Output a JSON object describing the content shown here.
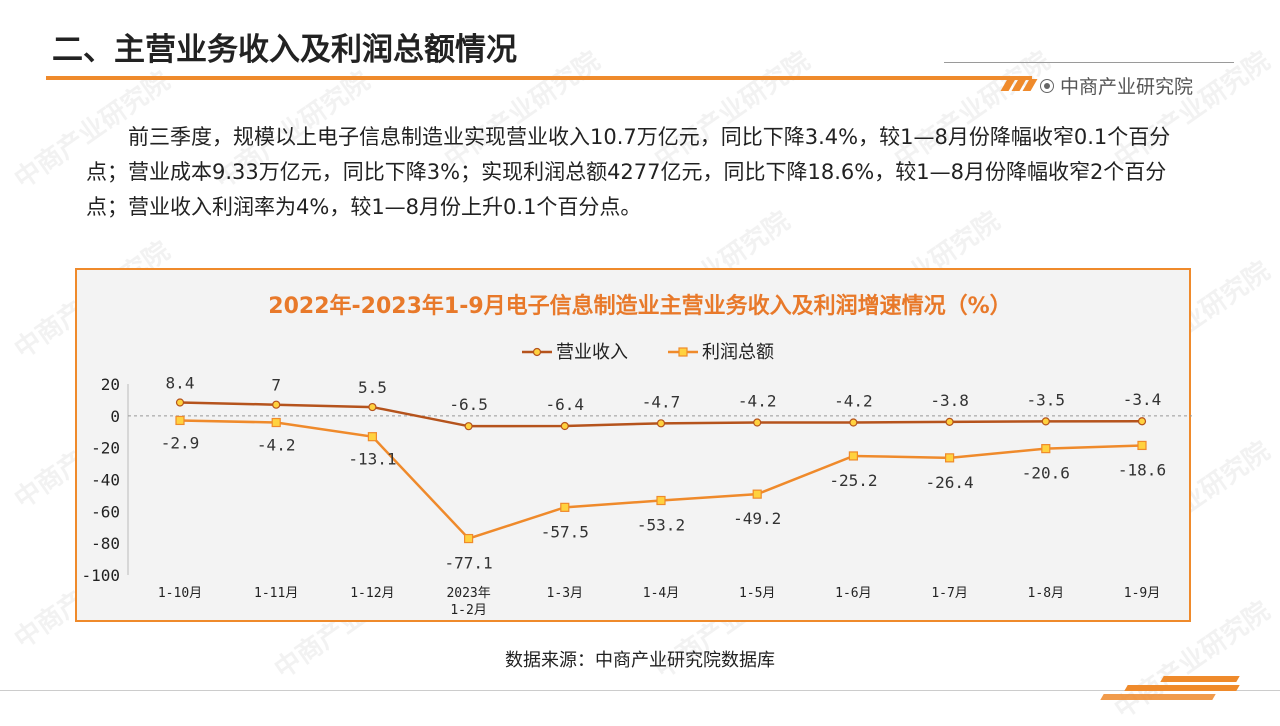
{
  "header": {
    "title": "二、主营业务收入及利润总额情况",
    "brand": "中商产业研究院"
  },
  "paragraph": "前三季度，规模以上电子信息制造业实现营业收入10.7万亿元，同比下降3.4%，较1—8月份降幅收窄0.1个百分点；营业成本9.33万亿元，同比下降3%；实现利润总额4277亿元，同比下降18.6%，较1—8月份降幅收窄2个百分点；营业收入利润率为4%，较1—8月份上升0.1个百分点。",
  "watermark": "中商产业研究院",
  "source": "数据来源：中商产业研究院数据库",
  "colors": {
    "accent": "#ef8a2b",
    "revenue": "#b5531c",
    "profit": "#ef8a2b",
    "marker_fill": "#ffd23f"
  },
  "chart_data": {
    "type": "line",
    "title": "2022年-2023年1-9月电子信息制造业主营业务收入及利润增速情况（%）",
    "categories": [
      "1-10月",
      "1-11月",
      "1-12月",
      "2023年\n1-2月",
      "1-3月",
      "1-4月",
      "1-5月",
      "1-6月",
      "1-7月",
      "1-8月",
      "1-9月"
    ],
    "series": [
      {
        "name": "营业收入",
        "values": [
          8.4,
          7,
          5.5,
          -6.5,
          -6.4,
          -4.7,
          -4.2,
          -4.2,
          -3.8,
          -3.5,
          -3.4
        ]
      },
      {
        "name": "利润总额",
        "values": [
          -2.9,
          -4.2,
          -13.1,
          -77.1,
          -57.5,
          -53.2,
          -49.2,
          -25.2,
          -26.4,
          -20.6,
          -18.6
        ]
      }
    ],
    "ylim": [
      -100,
      20
    ],
    "yticks": [
      20,
      0,
      -20,
      -40,
      -60,
      -80,
      -100
    ],
    "legend": "top-center",
    "grid": false
  }
}
